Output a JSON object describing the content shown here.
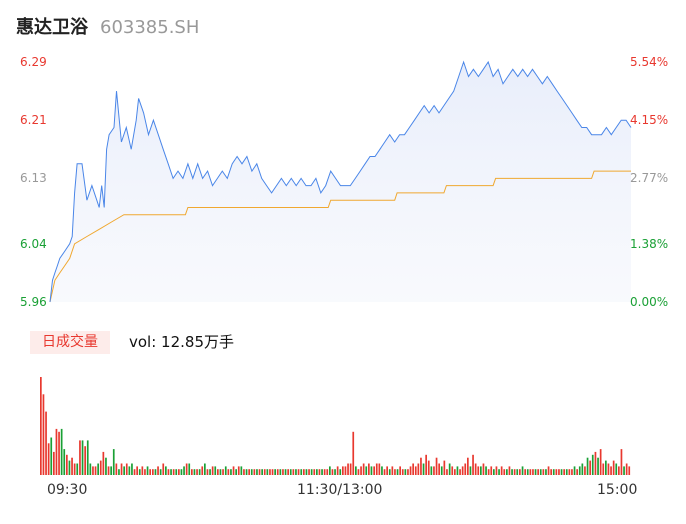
{
  "header": {
    "name": "惠达卫浴",
    "code": "603385.SH"
  },
  "colors": {
    "up": "#e8382f",
    "down": "#1aa035",
    "neutral": "#999999",
    "price_line": "#4a86e8",
    "avg_line": "#f0a830"
  },
  "volume_panel": {
    "tab_label": "日成交量",
    "summary": "vol: 12.85万手"
  },
  "chart_data": {
    "type": "line",
    "prev_close": 5.96,
    "y_range": [
      5.96,
      6.29
    ],
    "price_axis_labels": [
      {
        "value": "6.29",
        "pct": "5.54%",
        "dir": "up"
      },
      {
        "value": "6.21",
        "pct": "4.15%",
        "dir": "up"
      },
      {
        "value": "6.13",
        "pct": "2.77%",
        "dir": "neutral"
      },
      {
        "value": "6.04",
        "pct": "1.38%",
        "dir": "down"
      },
      {
        "value": "5.96",
        "pct": "0.00%",
        "dir": "down"
      }
    ],
    "time_labels": [
      "09:30",
      "11:30/13:00",
      "15:00"
    ],
    "price_series": [
      [
        0,
        5.96
      ],
      [
        1,
        5.99
      ],
      [
        2,
        6.0
      ],
      [
        3,
        6.01
      ],
      [
        4,
        6.02
      ],
      [
        6,
        6.03
      ],
      [
        8,
        6.04
      ],
      [
        9,
        6.05
      ],
      [
        10,
        6.11
      ],
      [
        11,
        6.15
      ],
      [
        13,
        6.15
      ],
      [
        15,
        6.1
      ],
      [
        17,
        6.12
      ],
      [
        19,
        6.1
      ],
      [
        20,
        6.09
      ],
      [
        21,
        6.12
      ],
      [
        22,
        6.09
      ],
      [
        23,
        6.17
      ],
      [
        24,
        6.19
      ],
      [
        26,
        6.2
      ],
      [
        27,
        6.25
      ],
      [
        29,
        6.18
      ],
      [
        31,
        6.2
      ],
      [
        33,
        6.17
      ],
      [
        35,
        6.21
      ],
      [
        36,
        6.24
      ],
      [
        38,
        6.22
      ],
      [
        40,
        6.19
      ],
      [
        42,
        6.21
      ],
      [
        44,
        6.19
      ],
      [
        46,
        6.17
      ],
      [
        48,
        6.15
      ],
      [
        50,
        6.13
      ],
      [
        52,
        6.14
      ],
      [
        54,
        6.13
      ],
      [
        56,
        6.15
      ],
      [
        58,
        6.13
      ],
      [
        60,
        6.15
      ],
      [
        62,
        6.13
      ],
      [
        64,
        6.14
      ],
      [
        66,
        6.12
      ],
      [
        68,
        6.13
      ],
      [
        70,
        6.14
      ],
      [
        72,
        6.13
      ],
      [
        74,
        6.15
      ],
      [
        76,
        6.16
      ],
      [
        78,
        6.15
      ],
      [
        80,
        6.16
      ],
      [
        82,
        6.14
      ],
      [
        84,
        6.15
      ],
      [
        86,
        6.13
      ],
      [
        88,
        6.12
      ],
      [
        90,
        6.11
      ],
      [
        92,
        6.12
      ],
      [
        94,
        6.13
      ],
      [
        96,
        6.12
      ],
      [
        98,
        6.13
      ],
      [
        100,
        6.12
      ],
      [
        102,
        6.13
      ],
      [
        104,
        6.12
      ],
      [
        106,
        6.12
      ],
      [
        108,
        6.13
      ],
      [
        110,
        6.11
      ],
      [
        112,
        6.12
      ],
      [
        114,
        6.14
      ],
      [
        116,
        6.13
      ],
      [
        118,
        6.12
      ],
      [
        120,
        6.12
      ],
      [
        122,
        6.12
      ],
      [
        124,
        6.13
      ],
      [
        126,
        6.14
      ],
      [
        128,
        6.15
      ],
      [
        130,
        6.16
      ],
      [
        132,
        6.16
      ],
      [
        134,
        6.17
      ],
      [
        136,
        6.18
      ],
      [
        138,
        6.19
      ],
      [
        140,
        6.18
      ],
      [
        142,
        6.19
      ],
      [
        144,
        6.19
      ],
      [
        146,
        6.2
      ],
      [
        148,
        6.21
      ],
      [
        150,
        6.22
      ],
      [
        152,
        6.23
      ],
      [
        154,
        6.22
      ],
      [
        156,
        6.23
      ],
      [
        158,
        6.22
      ],
      [
        160,
        6.23
      ],
      [
        162,
        6.24
      ],
      [
        164,
        6.25
      ],
      [
        166,
        6.27
      ],
      [
        168,
        6.29
      ],
      [
        170,
        6.27
      ],
      [
        172,
        6.28
      ],
      [
        174,
        6.27
      ],
      [
        176,
        6.28
      ],
      [
        178,
        6.29
      ],
      [
        180,
        6.27
      ],
      [
        182,
        6.28
      ],
      [
        184,
        6.26
      ],
      [
        186,
        6.27
      ],
      [
        188,
        6.28
      ],
      [
        190,
        6.27
      ],
      [
        192,
        6.28
      ],
      [
        194,
        6.27
      ],
      [
        196,
        6.28
      ],
      [
        198,
        6.27
      ],
      [
        200,
        6.26
      ],
      [
        202,
        6.27
      ],
      [
        204,
        6.26
      ],
      [
        206,
        6.25
      ],
      [
        208,
        6.24
      ],
      [
        210,
        6.23
      ],
      [
        212,
        6.22
      ],
      [
        214,
        6.21
      ],
      [
        216,
        6.2
      ],
      [
        218,
        6.2
      ],
      [
        220,
        6.19
      ],
      [
        222,
        6.19
      ],
      [
        224,
        6.19
      ],
      [
        226,
        6.2
      ],
      [
        228,
        6.19
      ],
      [
        230,
        6.2
      ],
      [
        232,
        6.21
      ],
      [
        234,
        6.21
      ],
      [
        236,
        6.2
      ]
    ],
    "avg_series": [
      [
        0,
        5.96
      ],
      [
        2,
        5.99
      ],
      [
        4,
        6.0
      ],
      [
        6,
        6.01
      ],
      [
        8,
        6.02
      ],
      [
        10,
        6.04
      ],
      [
        15,
        6.05
      ],
      [
        20,
        6.06
      ],
      [
        25,
        6.07
      ],
      [
        30,
        6.08
      ],
      [
        40,
        6.08
      ],
      [
        55,
        6.08
      ],
      [
        56,
        6.09
      ],
      [
        90,
        6.09
      ],
      [
        113,
        6.09
      ],
      [
        114,
        6.1
      ],
      [
        125,
        6.1
      ],
      [
        140,
        6.1
      ],
      [
        141,
        6.11
      ],
      [
        160,
        6.11
      ],
      [
        161,
        6.12
      ],
      [
        180,
        6.12
      ],
      [
        181,
        6.13
      ],
      [
        200,
        6.13
      ],
      [
        201,
        6.13
      ],
      [
        220,
        6.13
      ],
      [
        221,
        6.14
      ],
      [
        236,
        6.14
      ]
    ],
    "volume_series": [
      [
        0,
        34,
        "up"
      ],
      [
        1,
        28,
        "up"
      ],
      [
        2,
        22,
        "up"
      ],
      [
        3,
        11,
        "up"
      ],
      [
        4,
        13,
        "down"
      ],
      [
        5,
        8,
        "up"
      ],
      [
        6,
        16,
        "up"
      ],
      [
        7,
        15,
        "up"
      ],
      [
        8,
        16,
        "down"
      ],
      [
        9,
        9,
        "down"
      ],
      [
        10,
        7,
        "up"
      ],
      [
        11,
        5,
        "down"
      ],
      [
        12,
        6,
        "up"
      ],
      [
        13,
        4,
        "up"
      ],
      [
        14,
        4,
        "down"
      ],
      [
        15,
        12,
        "up"
      ],
      [
        16,
        12,
        "down"
      ],
      [
        17,
        10,
        "up"
      ],
      [
        18,
        12,
        "down"
      ],
      [
        19,
        4,
        "down"
      ],
      [
        20,
        3,
        "up"
      ],
      [
        21,
        3,
        "up"
      ],
      [
        22,
        4,
        "down"
      ],
      [
        23,
        5,
        "up"
      ],
      [
        24,
        8,
        "up"
      ],
      [
        25,
        6,
        "down"
      ],
      [
        26,
        3,
        "up"
      ],
      [
        27,
        3,
        "down"
      ],
      [
        28,
        9,
        "down"
      ],
      [
        29,
        4,
        "up"
      ],
      [
        30,
        2,
        "down"
      ],
      [
        31,
        4,
        "up"
      ],
      [
        32,
        3,
        "down"
      ],
      [
        33,
        4,
        "up"
      ],
      [
        34,
        3,
        "down"
      ],
      [
        35,
        4,
        "down"
      ],
      [
        36,
        2,
        "up"
      ],
      [
        37,
        3,
        "up"
      ],
      [
        38,
        2,
        "down"
      ],
      [
        39,
        3,
        "up"
      ],
      [
        40,
        2,
        "up"
      ],
      [
        41,
        3,
        "down"
      ],
      [
        42,
        2,
        "up"
      ],
      [
        43,
        2,
        "up"
      ],
      [
        44,
        2,
        "down"
      ],
      [
        45,
        3,
        "up"
      ],
      [
        46,
        2,
        "down"
      ],
      [
        47,
        4,
        "up"
      ],
      [
        48,
        3,
        "down"
      ],
      [
        49,
        2,
        "up"
      ],
      [
        50,
        2,
        "down"
      ],
      [
        51,
        2,
        "up"
      ],
      [
        52,
        2,
        "down"
      ],
      [
        53,
        2,
        "up"
      ],
      [
        54,
        2,
        "down"
      ],
      [
        55,
        3,
        "down"
      ],
      [
        56,
        4,
        "up"
      ],
      [
        57,
        4,
        "down"
      ],
      [
        58,
        2,
        "up"
      ],
      [
        59,
        2,
        "down"
      ],
      [
        60,
        2,
        "up"
      ],
      [
        61,
        2,
        "down"
      ],
      [
        62,
        3,
        "up"
      ],
      [
        63,
        4,
        "down"
      ],
      [
        64,
        2,
        "up"
      ],
      [
        65,
        2,
        "down"
      ],
      [
        66,
        3,
        "up"
      ],
      [
        67,
        3,
        "down"
      ],
      [
        68,
        2,
        "up"
      ],
      [
        69,
        2,
        "down"
      ],
      [
        70,
        2,
        "up"
      ],
      [
        71,
        3,
        "down"
      ],
      [
        72,
        2,
        "up"
      ],
      [
        73,
        2,
        "down"
      ],
      [
        74,
        3,
        "up"
      ],
      [
        75,
        2,
        "down"
      ],
      [
        76,
        3,
        "up"
      ],
      [
        77,
        3,
        "down"
      ],
      [
        78,
        2,
        "up"
      ],
      [
        79,
        2,
        "down"
      ],
      [
        80,
        2,
        "up"
      ],
      [
        81,
        2,
        "down"
      ],
      [
        82,
        2,
        "up"
      ],
      [
        83,
        2,
        "down"
      ],
      [
        84,
        2,
        "up"
      ],
      [
        85,
        2,
        "down"
      ],
      [
        86,
        2,
        "up"
      ],
      [
        87,
        2,
        "down"
      ],
      [
        88,
        2,
        "up"
      ],
      [
        89,
        2,
        "up"
      ],
      [
        90,
        2,
        "down"
      ],
      [
        91,
        2,
        "up"
      ],
      [
        92,
        2,
        "down"
      ],
      [
        93,
        2,
        "up"
      ],
      [
        94,
        2,
        "down"
      ],
      [
        95,
        2,
        "up"
      ],
      [
        96,
        2,
        "down"
      ],
      [
        97,
        2,
        "up"
      ],
      [
        98,
        2,
        "down"
      ],
      [
        99,
        2,
        "up"
      ],
      [
        100,
        2,
        "down"
      ],
      [
        101,
        2,
        "up"
      ],
      [
        102,
        2,
        "down"
      ],
      [
        103,
        2,
        "up"
      ],
      [
        104,
        2,
        "down"
      ],
      [
        105,
        2,
        "up"
      ],
      [
        106,
        2,
        "down"
      ],
      [
        107,
        2,
        "up"
      ],
      [
        108,
        2,
        "down"
      ],
      [
        109,
        2,
        "up"
      ],
      [
        110,
        2,
        "up"
      ],
      [
        111,
        3,
        "down"
      ],
      [
        112,
        2,
        "up"
      ],
      [
        113,
        2,
        "down"
      ],
      [
        114,
        3,
        "up"
      ],
      [
        115,
        2,
        "down"
      ],
      [
        116,
        3,
        "up"
      ],
      [
        117,
        3,
        "up"
      ],
      [
        118,
        4,
        "up"
      ],
      [
        119,
        4,
        "up"
      ],
      [
        120,
        15,
        "up"
      ],
      [
        121,
        3,
        "down"
      ],
      [
        122,
        2,
        "up"
      ],
      [
        123,
        3,
        "up"
      ],
      [
        124,
        4,
        "up"
      ],
      [
        125,
        3,
        "down"
      ],
      [
        126,
        4,
        "up"
      ],
      [
        127,
        3,
        "down"
      ],
      [
        128,
        3,
        "up"
      ],
      [
        129,
        4,
        "up"
      ],
      [
        130,
        4,
        "up"
      ],
      [
        131,
        3,
        "down"
      ],
      [
        132,
        2,
        "up"
      ],
      [
        133,
        3,
        "up"
      ],
      [
        134,
        2,
        "down"
      ],
      [
        135,
        3,
        "up"
      ],
      [
        136,
        2,
        "up"
      ],
      [
        137,
        2,
        "down"
      ],
      [
        138,
        3,
        "up"
      ],
      [
        139,
        2,
        "up"
      ],
      [
        140,
        2,
        "down"
      ],
      [
        141,
        2,
        "up"
      ],
      [
        142,
        3,
        "up"
      ],
      [
        143,
        4,
        "up"
      ],
      [
        144,
        3,
        "up"
      ],
      [
        145,
        4,
        "up"
      ],
      [
        146,
        6,
        "up"
      ],
      [
        147,
        4,
        "down"
      ],
      [
        148,
        7,
        "up"
      ],
      [
        149,
        5,
        "up"
      ],
      [
        150,
        3,
        "down"
      ],
      [
        151,
        3,
        "up"
      ],
      [
        152,
        6,
        "up"
      ],
      [
        153,
        4,
        "up"
      ],
      [
        154,
        3,
        "down"
      ],
      [
        155,
        5,
        "up"
      ],
      [
        156,
        2,
        "up"
      ],
      [
        157,
        4,
        "down"
      ],
      [
        158,
        3,
        "up"
      ],
      [
        159,
        2,
        "up"
      ],
      [
        160,
        3,
        "down"
      ],
      [
        161,
        2,
        "up"
      ],
      [
        162,
        3,
        "up"
      ],
      [
        163,
        4,
        "up"
      ],
      [
        164,
        6,
        "up"
      ],
      [
        165,
        3,
        "down"
      ],
      [
        166,
        7,
        "up"
      ],
      [
        167,
        4,
        "up"
      ],
      [
        168,
        3,
        "up"
      ],
      [
        169,
        3,
        "down"
      ],
      [
        170,
        4,
        "up"
      ],
      [
        171,
        3,
        "down"
      ],
      [
        172,
        2,
        "up"
      ],
      [
        173,
        3,
        "up"
      ],
      [
        174,
        2,
        "down"
      ],
      [
        175,
        3,
        "up"
      ],
      [
        176,
        2,
        "down"
      ],
      [
        177,
        3,
        "up"
      ],
      [
        178,
        2,
        "up"
      ],
      [
        179,
        2,
        "down"
      ],
      [
        180,
        3,
        "up"
      ],
      [
        181,
        2,
        "down"
      ],
      [
        182,
        2,
        "up"
      ],
      [
        183,
        2,
        "down"
      ],
      [
        184,
        2,
        "up"
      ],
      [
        185,
        3,
        "down"
      ],
      [
        186,
        2,
        "up"
      ],
      [
        187,
        2,
        "down"
      ],
      [
        188,
        2,
        "up"
      ],
      [
        189,
        2,
        "up"
      ],
      [
        190,
        2,
        "down"
      ],
      [
        191,
        2,
        "up"
      ],
      [
        192,
        2,
        "down"
      ],
      [
        193,
        2,
        "up"
      ],
      [
        194,
        2,
        "down"
      ],
      [
        195,
        3,
        "up"
      ],
      [
        196,
        2,
        "up"
      ],
      [
        197,
        2,
        "down"
      ],
      [
        198,
        2,
        "up"
      ],
      [
        199,
        2,
        "up"
      ],
      [
        200,
        2,
        "down"
      ],
      [
        201,
        2,
        "up"
      ],
      [
        202,
        2,
        "down"
      ],
      [
        203,
        2,
        "up"
      ],
      [
        204,
        2,
        "up"
      ],
      [
        205,
        3,
        "down"
      ],
      [
        206,
        2,
        "up"
      ],
      [
        207,
        3,
        "down"
      ],
      [
        208,
        4,
        "down"
      ],
      [
        209,
        3,
        "up"
      ],
      [
        210,
        6,
        "down"
      ],
      [
        211,
        5,
        "up"
      ],
      [
        212,
        7,
        "down"
      ],
      [
        213,
        8,
        "up"
      ],
      [
        214,
        6,
        "down"
      ],
      [
        215,
        9,
        "up"
      ],
      [
        216,
        4,
        "up"
      ],
      [
        217,
        5,
        "down"
      ],
      [
        218,
        4,
        "up"
      ],
      [
        219,
        3,
        "up"
      ],
      [
        220,
        5,
        "up"
      ],
      [
        221,
        4,
        "down"
      ],
      [
        222,
        3,
        "up"
      ],
      [
        223,
        9,
        "up"
      ],
      [
        224,
        3,
        "down"
      ],
      [
        225,
        4,
        "up"
      ],
      [
        226,
        3,
        "up"
      ]
    ]
  }
}
